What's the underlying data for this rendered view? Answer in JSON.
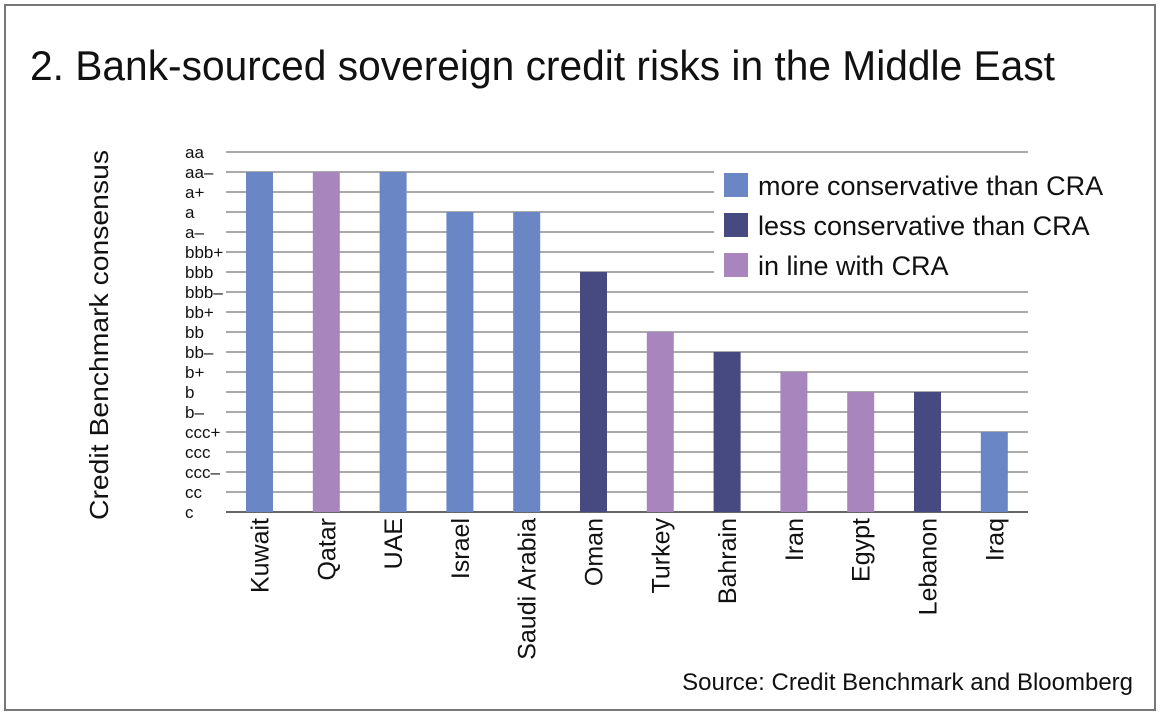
{
  "chart_data": {
    "type": "bar",
    "title": "2. Bank-sourced sovereign credit risks in the Middle East",
    "ylabel": "Credit Benchmark consensus",
    "xlabel": "",
    "y_ticks": [
      "aa",
      "aa–",
      "a+",
      "a",
      "a–",
      "bbb+",
      "bbb",
      "bbb–",
      "bb+",
      "bb",
      "bb–",
      "b+",
      "b",
      "b–",
      "ccc+",
      "ccc",
      "ccc–",
      "cc",
      "c"
    ],
    "categories": [
      "Kuwait",
      "Qatar",
      "UAE",
      "Israel",
      "Saudi Arabia",
      "Oman",
      "Turkey",
      "Bahrain",
      "Iran",
      "Egypt",
      "Lebanon",
      "Iraq"
    ],
    "values": [
      "aa–",
      "aa–",
      "aa–",
      "a",
      "a",
      "bbb",
      "bb",
      "bb–",
      "b+",
      "b",
      "b",
      "ccc+"
    ],
    "groups": [
      "more",
      "inline",
      "more",
      "more",
      "more",
      "less",
      "inline",
      "less",
      "inline",
      "inline",
      "less",
      "more"
    ],
    "legend": [
      {
        "key": "more",
        "label": "more conservative than CRA",
        "color": "#6a86c4"
      },
      {
        "key": "less",
        "label": "less conservative than CRA",
        "color": "#464a80"
      },
      {
        "key": "inline",
        "label": "in line with CRA",
        "color": "#a985bd"
      }
    ],
    "legend_position": "top-right",
    "grid": true,
    "source": "Source: Credit Benchmark and Bloomberg"
  }
}
